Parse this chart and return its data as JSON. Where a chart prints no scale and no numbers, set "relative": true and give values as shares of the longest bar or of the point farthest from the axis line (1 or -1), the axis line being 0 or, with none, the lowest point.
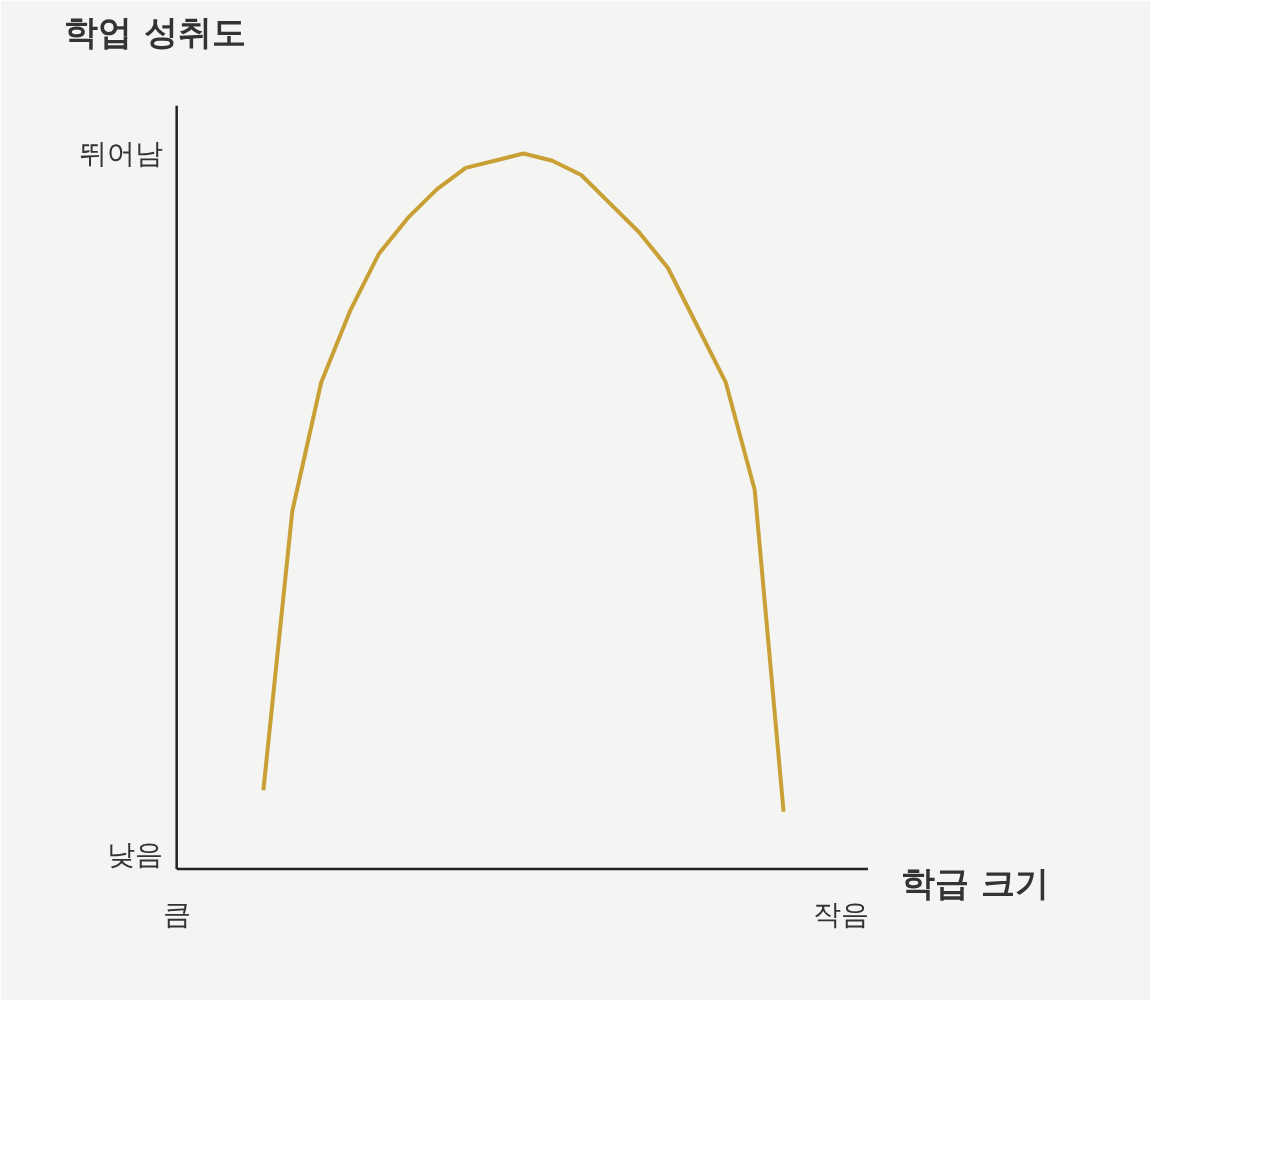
{
  "chart_data": {
    "type": "line",
    "xlabel": "학급 크기",
    "ylabel": "학업 성취도",
    "relative": true,
    "annotations": [
      "낮음",
      "뛰어남"
    ],
    "categories": [
      "큼",
      null,
      null,
      null,
      null,
      null,
      null,
      null,
      null,
      null,
      null,
      null,
      null,
      null,
      null,
      null,
      null,
      null,
      null,
      null,
      null,
      null,
      null,
      "작음"
    ],
    "marker": "none",
    "line_style": "solid",
    "series": [
      {
        "color": "#c8a035",
        "values": [
          null,
          null,
          null,
          0.11,
          0.5,
          0.68,
          0.78,
          0.86,
          0.91,
          0.95,
          0.98,
          0.99,
          1,
          0.99,
          0.97,
          0.93,
          0.89,
          0.84,
          0.76,
          0.68,
          0.53,
          0.08,
          null,
          null
        ]
      }
    ]
  }
}
